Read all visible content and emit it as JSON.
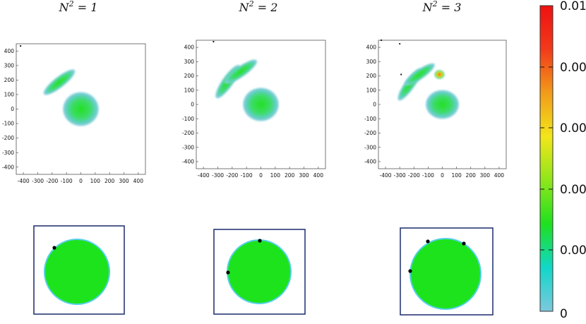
{
  "chart_data": [
    {
      "type": "heatmap",
      "title": "N^2 = 1",
      "title_parts": {
        "base": "N",
        "sup": "2",
        "rest": " = 1"
      },
      "x_ticks": [
        "-400",
        "-300",
        "-200",
        "-100",
        "0",
        "100",
        "200",
        "300",
        "400"
      ],
      "y_ticks": [
        "400",
        "300",
        "200",
        "100",
        "0",
        "-100",
        "-200",
        "-300",
        "-400"
      ],
      "xlim": [
        -450,
        450
      ],
      "ylim": [
        -450,
        450
      ],
      "blobs": [
        {
          "x": 0,
          "y": 0,
          "rx": 160,
          "ry": 150,
          "peak": 0.0008
        },
        {
          "x": -150,
          "y": 185,
          "rx": 175,
          "ry": 48,
          "angle": -38,
          "peak": 0.0006
        }
      ],
      "markers": [
        {
          "x": -420,
          "y": 435
        }
      ],
      "inset": {
        "disk": "single circular domain",
        "black_dots": 1
      }
    },
    {
      "type": "heatmap",
      "title": "N^2 = 2",
      "title_parts": {
        "base": "N",
        "sup": "2",
        "rest": " = 2"
      },
      "x_ticks": [
        "-400",
        "-300",
        "-200",
        "-100",
        "0",
        "100",
        "200",
        "300",
        "400"
      ],
      "y_ticks": [
        "400",
        "300",
        "200",
        "100",
        "0",
        "-100",
        "-200",
        "-300",
        "-400"
      ],
      "xlim": [
        -450,
        450
      ],
      "ylim": [
        -450,
        450
      ],
      "blobs": [
        {
          "x": 0,
          "y": 0,
          "rx": 160,
          "ry": 150,
          "peak": 0.0008
        },
        {
          "x": -230,
          "y": 160,
          "rx": 180,
          "ry": 50,
          "angle": -55,
          "peak": 0.0006
        },
        {
          "x": -140,
          "y": 230,
          "rx": 175,
          "ry": 48,
          "angle": -35,
          "peak": 0.0006
        }
      ],
      "markers": [
        {
          "x": -330,
          "y": 440
        }
      ],
      "inset": {
        "disk": "single circular domain",
        "black_dots": 2
      }
    },
    {
      "type": "heatmap",
      "title": "N^2 = 3",
      "title_parts": {
        "base": "N",
        "sup": "2",
        "rest": " = 3"
      },
      "x_ticks": [
        "-400",
        "-300",
        "-200",
        "-100",
        "0",
        "100",
        "200",
        "300",
        "400"
      ],
      "y_ticks": [
        "400",
        "300",
        "200",
        "100",
        "0",
        "-100",
        "-200",
        "-300",
        "-400"
      ],
      "xlim": [
        -450,
        450
      ],
      "ylim": [
        -450,
        450
      ],
      "blobs": [
        {
          "x": 0,
          "y": 0,
          "rx": 150,
          "ry": 130,
          "peak": 0.0008
        },
        {
          "x": -230,
          "y": 140,
          "rx": 175,
          "ry": 46,
          "angle": -55,
          "peak": 0.0006
        },
        {
          "x": -160,
          "y": 210,
          "rx": 165,
          "ry": 44,
          "angle": -35,
          "peak": 0.0006
        },
        {
          "x": -20,
          "y": 210,
          "rx": 45,
          "ry": 40,
          "peak": 0.0095
        }
      ],
      "markers": [
        {
          "x": -430,
          "y": 450
        },
        {
          "x": -300,
          "y": 425
        },
        {
          "x": -290,
          "y": 210
        }
      ],
      "inset": {
        "disk": "single circular domain",
        "black_dots": 3
      }
    }
  ],
  "colorbar": {
    "tick_labels": [
      "0.01",
      "0.00",
      "0.00",
      "0.00",
      "0.00",
      "0"
    ],
    "range": [
      0,
      0.01
    ],
    "colors": [
      "#7ec8dc",
      "#11d7c9",
      "#1fe01f",
      "#8fe61b",
      "#f2e61a",
      "#f29b1a",
      "#f23a1a",
      "#ee1111"
    ]
  },
  "colors": {
    "disk_green": "#1de31d",
    "disk_rim": "#55d0e6",
    "inset_frame": "#1a2a6c",
    "dot": "#000000"
  }
}
